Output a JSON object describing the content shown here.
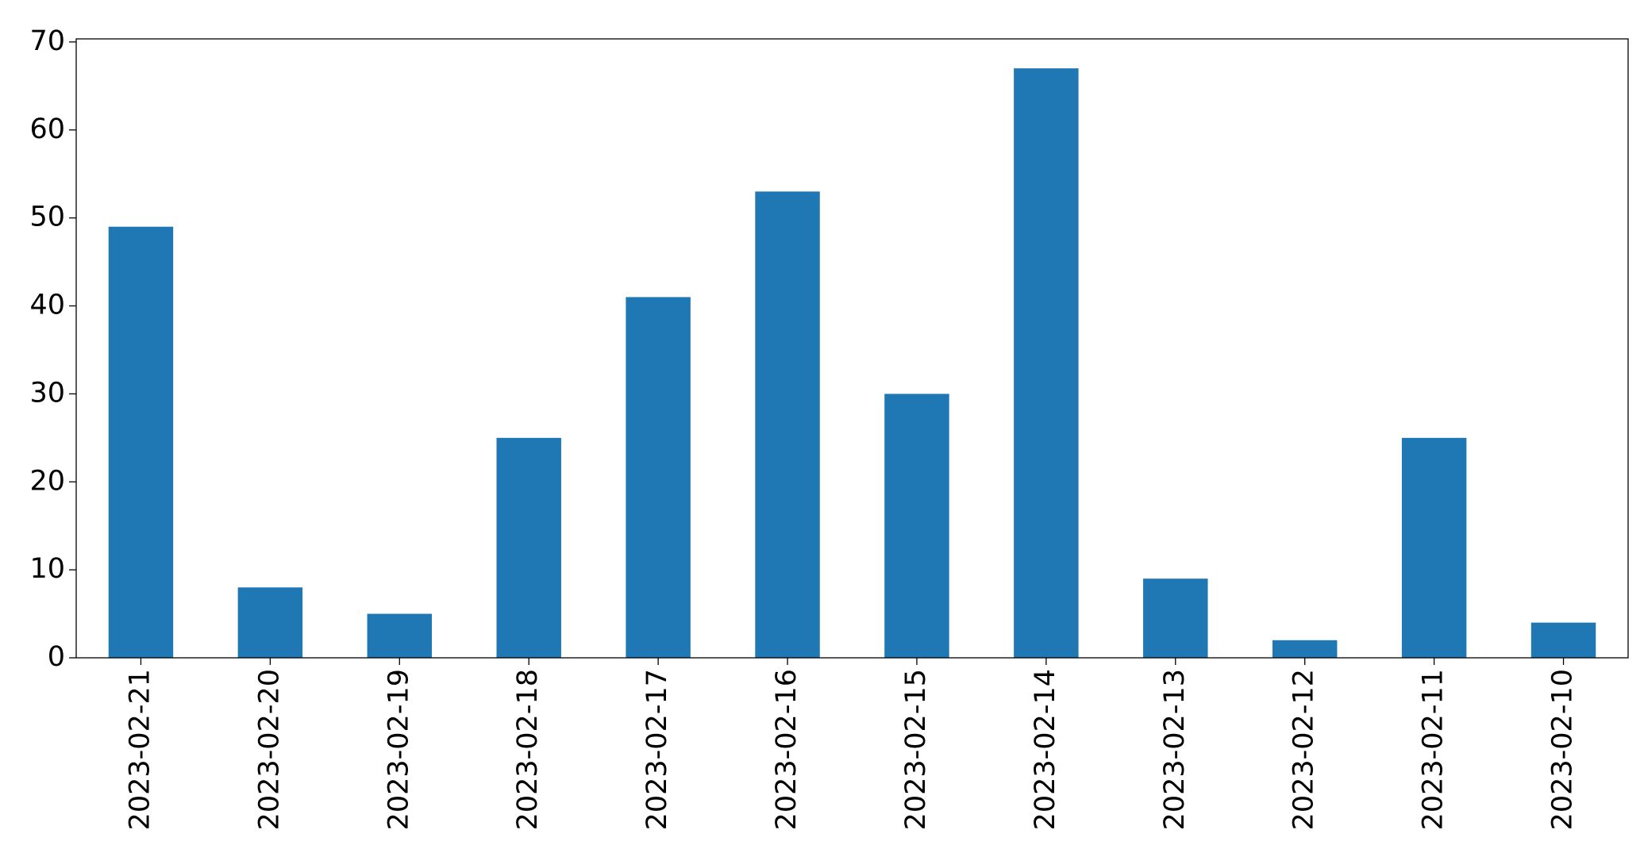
{
  "chart_data": {
    "type": "bar",
    "categories": [
      "2023-02-21",
      "2023-02-20",
      "2023-02-19",
      "2023-02-18",
      "2023-02-17",
      "2023-02-16",
      "2023-02-15",
      "2023-02-14",
      "2023-02-13",
      "2023-02-12",
      "2023-02-11",
      "2023-02-10"
    ],
    "values": [
      49,
      8,
      5,
      25,
      41,
      53,
      30,
      67,
      9,
      2,
      25,
      4
    ],
    "color": "#1f77b4",
    "ylim": [
      0,
      70.35
    ],
    "yticks": [
      0,
      10,
      20,
      30,
      40,
      50,
      60,
      70
    ],
    "grid": false
  }
}
